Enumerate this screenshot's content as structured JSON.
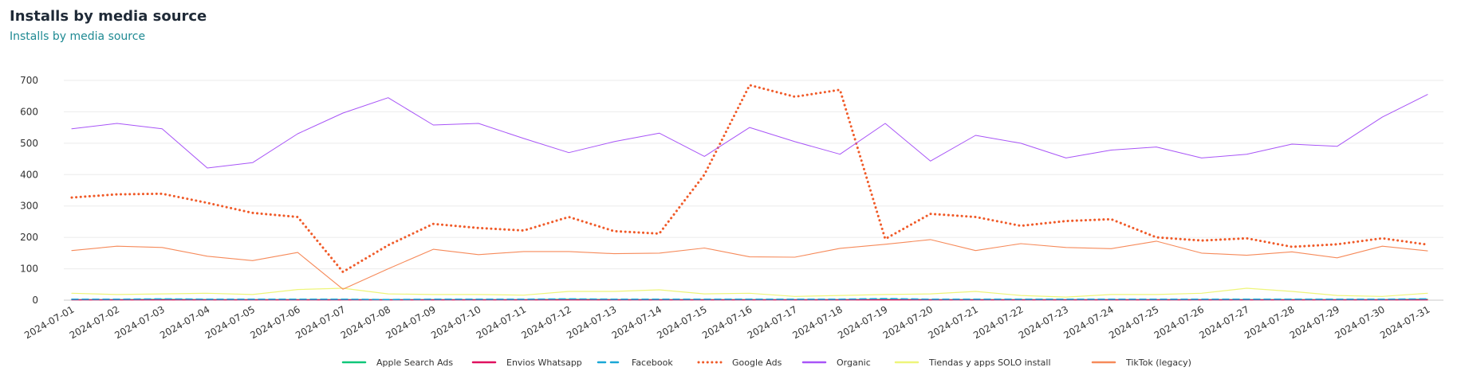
{
  "header": {
    "title": "Installs by media source",
    "subtitle": "Installs by media source"
  },
  "chart_data": {
    "type": "line",
    "title": "Installs by media source",
    "subtitle": "Installs by media source",
    "xlabel": "",
    "ylabel": "",
    "ylim": [
      0,
      700
    ],
    "yticks": [
      0,
      100,
      200,
      300,
      400,
      500,
      600,
      700
    ],
    "grid": true,
    "legend": "bottom",
    "categories": [
      "2024-07-01",
      "2024-07-02",
      "2024-07-03",
      "2024-07-04",
      "2024-07-05",
      "2024-07-06",
      "2024-07-07",
      "2024-07-08",
      "2024-07-09",
      "2024-07-10",
      "2024-07-11",
      "2024-07-12",
      "2024-07-13",
      "2024-07-14",
      "2024-07-15",
      "2024-07-16",
      "2024-07-17",
      "2024-07-18",
      "2024-07-19",
      "2024-07-20",
      "2024-07-21",
      "2024-07-22",
      "2024-07-23",
      "2024-07-24",
      "2024-07-25",
      "2024-07-26",
      "2024-07-27",
      "2024-07-28",
      "2024-07-29",
      "2024-07-30",
      "2024-07-31"
    ],
    "series": [
      {
        "name": "Apple Search Ads",
        "color": "#10c77a",
        "style": "solid",
        "width": 1.2,
        "values": [
          2,
          2,
          3,
          2,
          2,
          2,
          2,
          2,
          2,
          2,
          2,
          3,
          2,
          2,
          2,
          2,
          2,
          2,
          3,
          2,
          2,
          2,
          2,
          2,
          2,
          2,
          2,
          2,
          2,
          2,
          3
        ]
      },
      {
        "name": "Envios Whatsapp",
        "color": "#e0115f",
        "style": "solid",
        "width": 1.2,
        "values": [
          1,
          1,
          1,
          1,
          1,
          1,
          1,
          1,
          1,
          1,
          1,
          1,
          1,
          1,
          1,
          1,
          1,
          1,
          1,
          1,
          1,
          1,
          1,
          1,
          1,
          1,
          1,
          1,
          1,
          1,
          1
        ]
      },
      {
        "name": "Facebook",
        "color": "#1aa7d6",
        "style": "dashed",
        "width": 1.6,
        "values": [
          3,
          3,
          4,
          3,
          3,
          3,
          3,
          2,
          3,
          3,
          3,
          4,
          3,
          3,
          3,
          3,
          3,
          3,
          5,
          3,
          3,
          3,
          3,
          3,
          3,
          3,
          3,
          3,
          3,
          3,
          4
        ]
      },
      {
        "name": "Google Ads",
        "color": "#f05a28",
        "style": "dotted",
        "width": 3,
        "values": [
          327,
          337,
          339,
          310,
          278,
          265,
          90,
          175,
          243,
          230,
          222,
          265,
          220,
          212,
          400,
          685,
          648,
          670,
          195,
          275,
          265,
          237,
          252,
          258,
          200,
          190,
          197,
          170,
          178,
          197,
          177
        ]
      },
      {
        "name": "Organic",
        "color": "#a855f7",
        "style": "solid",
        "width": 1,
        "values": [
          546,
          563,
          546,
          421,
          438,
          530,
          596,
          645,
          558,
          563,
          515,
          470,
          505,
          532,
          458,
          550,
          505,
          465,
          563,
          443,
          525,
          500,
          453,
          478,
          488,
          453,
          465,
          497,
          490,
          583,
          655
        ]
      },
      {
        "name": "Tiendas y apps SOLO install",
        "color": "#eef57a",
        "style": "solid",
        "width": 1.2,
        "values": [
          22,
          18,
          20,
          22,
          18,
          34,
          38,
          20,
          18,
          18,
          16,
          28,
          28,
          33,
          20,
          22,
          12,
          15,
          18,
          20,
          28,
          15,
          10,
          18,
          18,
          22,
          38,
          28,
          15,
          12,
          22
        ]
      },
      {
        "name": "TikTok (legacy)",
        "color": "#f68a5a",
        "style": "solid",
        "width": 1.1,
        "values": [
          158,
          172,
          168,
          140,
          126,
          152,
          35,
          100,
          162,
          145,
          155,
          155,
          148,
          150,
          166,
          138,
          137,
          165,
          178,
          193,
          158,
          180,
          168,
          164,
          188,
          150,
          143,
          154,
          135,
          172,
          157
        ]
      }
    ]
  }
}
